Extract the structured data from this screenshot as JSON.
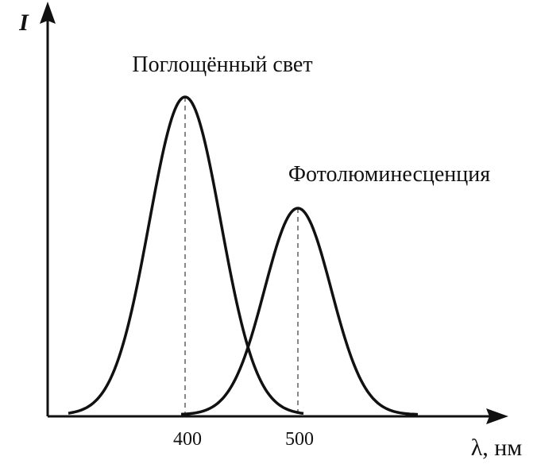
{
  "axes": {
    "y_label": "I",
    "x_label": "λ, нм",
    "x_ticks": [
      "400",
      "500"
    ]
  },
  "curves": [
    {
      "label": "Поглощённый свет"
    },
    {
      "label": "Фотолюминесценция"
    }
  ]
}
